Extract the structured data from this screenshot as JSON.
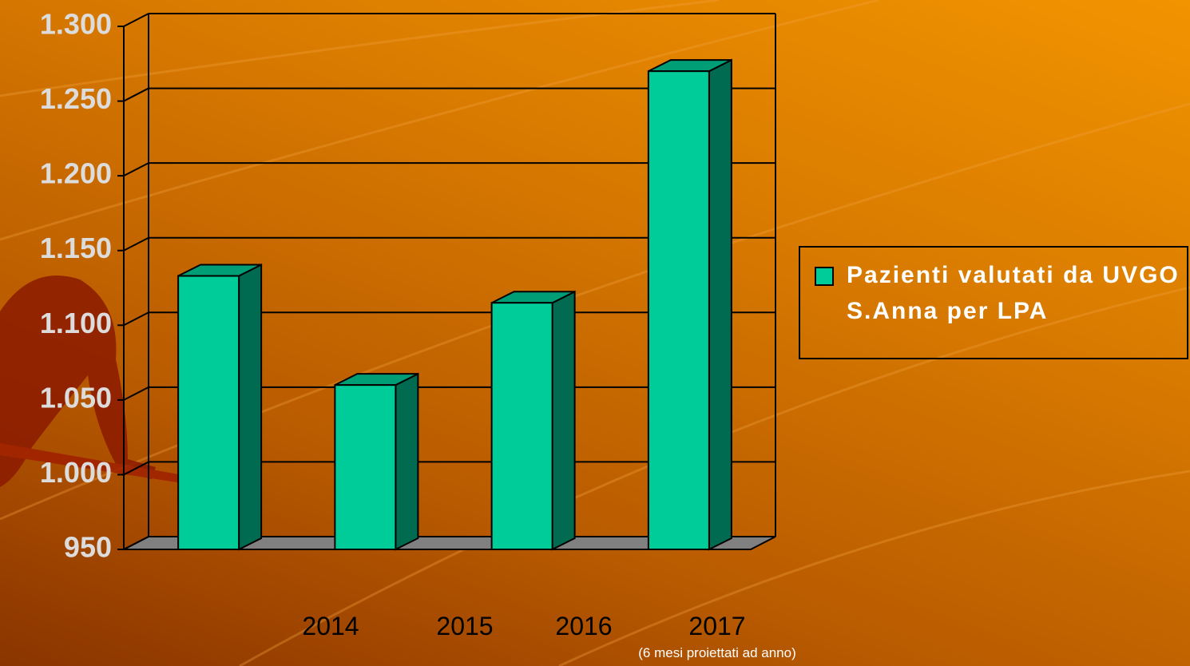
{
  "chart_data": {
    "type": "bar3d",
    "categories": [
      "2014",
      "2015",
      "2016",
      "2017"
    ],
    "annotation": "(6 mesi proiettati ad anno)",
    "series": [
      {
        "name": "Pazienti valutati da UVGO S.Anna per LPA",
        "color": "#00cc99",
        "side_color": "#006b50",
        "values": [
          1133,
          1060,
          1115,
          1270
        ]
      }
    ],
    "ylim": [
      950,
      1300
    ],
    "yticks": [
      950,
      {
        "value": 1000,
        "label": "1.000"
      },
      {
        "value": 1050,
        "label": "1.050"
      },
      {
        "value": 1100,
        "label": "1.100"
      },
      {
        "value": 1150,
        "label": "1.150"
      },
      {
        "value": 1200,
        "label": "1.200"
      },
      {
        "value": 1250,
        "label": "1.250"
      },
      {
        "value": 1300,
        "label": "1.300"
      }
    ],
    "grid": true,
    "legend": "right"
  }
}
